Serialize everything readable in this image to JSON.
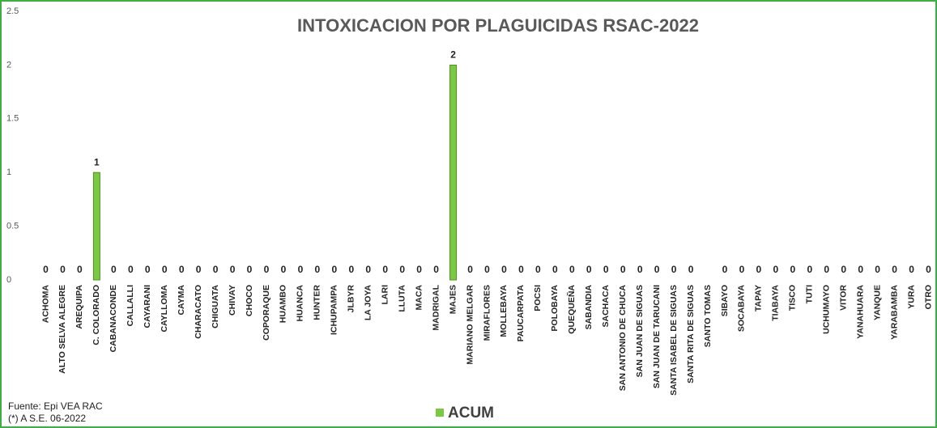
{
  "chart_data": {
    "type": "bar",
    "title": "INTOXICACION POR PLAGUICIDAS RSAC-2022",
    "categories": [
      "ACHOMA",
      "ALTO SELVA ALEGRE",
      "AREQUIPA",
      "C. COLORADO",
      "CABANACONDE",
      "CALLALLI",
      "CAYARANI",
      "CAYLLOMA",
      "CAYMA",
      "CHARACATO",
      "CHIGUATA",
      "CHIVAY",
      "CHOCO",
      "COPORAQUE",
      "HUAMBO",
      "HUANCA",
      "HUNTER",
      "ICHUPAMPA",
      "JLBYR",
      "LA JOYA",
      "LARI",
      "LLUTA",
      "MACA",
      "MADRIGAL",
      "MAJES",
      "MARIANO MELGAR",
      "MIRAFLORES",
      "MOLLEBAYA",
      "PAUCARPATA",
      "POCSI",
      "POLOBAYA",
      "QUEQUEÑA",
      "SABANDIA",
      "SACHACA",
      "SAN ANTONIO DE CHUCA",
      "SAN JUAN DE SIGUAS",
      "SAN JUAN DE TARUCANI",
      "SANTA ISABEL DE SIGUAS",
      "SANTA RITA DE SIGUAS",
      "SANTO TOMAS",
      "SIBAYO",
      "SOCABAYA",
      "TAPAY",
      "TIABAYA",
      "TISCO",
      "TUTI",
      "UCHUMAYO",
      "VITOR",
      "YANAHUARA",
      "YANQUE",
      "YARABAMBA",
      "YURA",
      "OTRO"
    ],
    "series": [
      {
        "name": "ACUM",
        "color": "#7ac943",
        "values": [
          0,
          0,
          0,
          1,
          0,
          0,
          0,
          0,
          0,
          0,
          0,
          0,
          0,
          0,
          0,
          0,
          0,
          0,
          0,
          0,
          0,
          0,
          0,
          0,
          2,
          0,
          0,
          0,
          0,
          0,
          0,
          0,
          0,
          0,
          0,
          0,
          0,
          0,
          0,
          null,
          0,
          0,
          0,
          0,
          0,
          0,
          0,
          0,
          0,
          0,
          0,
          0,
          0
        ]
      }
    ],
    "ylim": [
      0,
      2.5
    ],
    "yticks": [
      0,
      0.5,
      1,
      1.5,
      2,
      2.5
    ],
    "grid": false,
    "legend": "bottom",
    "notes": [
      "Fuente:  Epi VEA RAC",
      "(*) A S.E. 06-2022"
    ]
  }
}
